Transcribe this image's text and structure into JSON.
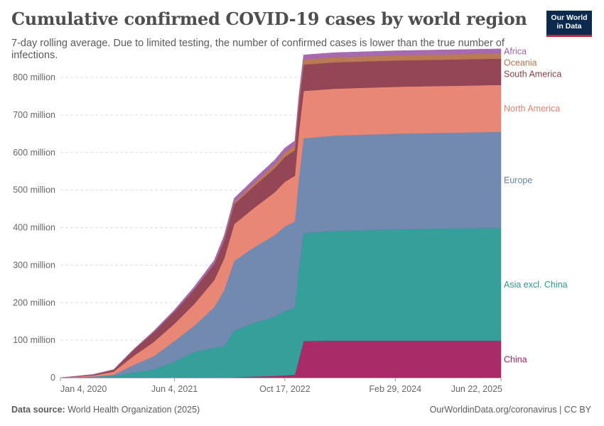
{
  "header": {
    "title": "Cumulative confirmed COVID-19 cases by world region",
    "subtitle": "7-day rolling average. Due to limited testing, the number of confirmed cases is lower than the true number of infections.",
    "logo_line1": "Our World",
    "logo_line2": "in Data"
  },
  "footer": {
    "source_label": "Data source:",
    "source_text": "World Health Organization (2025)",
    "link_text": "OurWorldinData.org/coronavirus | CC BY"
  },
  "chart_data": {
    "type": "area",
    "stacked": true,
    "x": [
      "2020-01-04",
      "2020-06-01",
      "2020-09-01",
      "2020-12-01",
      "2021-03-01",
      "2021-06-04",
      "2021-09-01",
      "2021-12-01",
      "2022-01-15",
      "2022-03-01",
      "2022-06-01",
      "2022-09-01",
      "2022-10-17",
      "2022-12-01",
      "2022-12-20",
      "2023-01-10",
      "2023-06-01",
      "2024-02-29",
      "2025-06-22"
    ],
    "x_tick_labels": [
      "Jan 4, 2020",
      "Jun 4, 2021",
      "Oct 17, 2022",
      "Feb 29, 2024",
      "Jun 22, 2025"
    ],
    "y_tick_labels": [
      "0",
      "100 million",
      "200 million",
      "300 million",
      "400 million",
      "500 million",
      "600 million",
      "700 million",
      "800 million"
    ],
    "ylim": [
      0,
      800000000
    ],
    "grid": "horizontal dashed",
    "legend": "right, labels at series ends",
    "series": [
      {
        "name": "China",
        "color": "#a2205f",
        "values": [
          0,
          0,
          0,
          0,
          0,
          0,
          0,
          0,
          0,
          1,
          3,
          5,
          6,
          8,
          50,
          98,
          99,
          99,
          99
        ]
      },
      {
        "name": "Asia excl. China",
        "color": "#2a9a94",
        "values": [
          0,
          2,
          5,
          14,
          22,
          43,
          68,
          80,
          84,
          125,
          143,
          157,
          172,
          178,
          240,
          288,
          292,
          296,
          300
        ]
      },
      {
        "name": "Europe",
        "color": "#6a83ac",
        "values": [
          0,
          1,
          3,
          20,
          35,
          55,
          70,
          108,
          150,
          185,
          202,
          218,
          225,
          230,
          245,
          252,
          254,
          255,
          256
        ]
      },
      {
        "name": "North America",
        "color": "#e8816f",
        "values": [
          0,
          3,
          8,
          24,
          38,
          46,
          58,
          72,
          84,
          98,
          105,
          114,
          119,
          122,
          124,
          126,
          125,
          125,
          125
        ]
      },
      {
        "name": "South America",
        "color": "#8d3d4d",
        "values": [
          0,
          2,
          5,
          16,
          26,
          32,
          39,
          43,
          48,
          53,
          58,
          64,
          66,
          68,
          70,
          70,
          70,
          70,
          70
        ]
      },
      {
        "name": "Oceania",
        "color": "#b6744b",
        "values": [
          0,
          0,
          0,
          0,
          0,
          0,
          0,
          1,
          3,
          5,
          8,
          10,
          12,
          13,
          14,
          14,
          14,
          14,
          14
        ]
      },
      {
        "name": "Africa",
        "color": "#a262ac",
        "values": [
          0,
          1,
          1,
          2,
          3,
          5,
          7,
          9,
          10,
          11,
          11,
          12,
          12,
          12,
          12,
          12,
          12,
          12,
          12
        ]
      }
    ],
    "values_unit": "million"
  }
}
